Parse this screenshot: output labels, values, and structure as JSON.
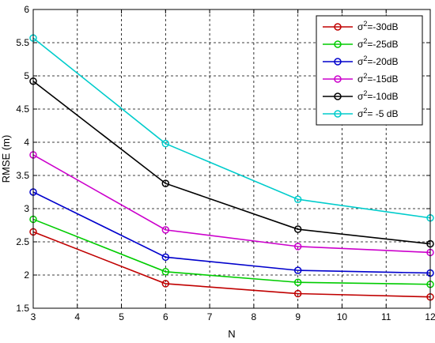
{
  "chart_data": {
    "type": "line",
    "xlabel": "N",
    "ylabel": "RMSE (m)",
    "xlim": [
      3,
      12
    ],
    "ylim": [
      1.5,
      6
    ],
    "xticks": [
      "3",
      "4",
      "5",
      "6",
      "7",
      "8",
      "9",
      "10",
      "11",
      "12"
    ],
    "yticks": [
      "1.5",
      "2",
      "2.5",
      "3",
      "3.5",
      "4",
      "4.5",
      "5",
      "5.5",
      "6"
    ],
    "grid": true,
    "legend_position": "top-right",
    "x": [
      3,
      6,
      9,
      12
    ],
    "series": [
      {
        "name": "σ2=-30dB",
        "sup": "2",
        "label_pre": "σ",
        "label_post": "=-30dB",
        "color": "#c00000",
        "values": [
          2.65,
          1.87,
          1.72,
          1.67
        ]
      },
      {
        "name": "σ2=-25dB",
        "sup": "2",
        "label_pre": "σ",
        "label_post": "=-25dB",
        "color": "#00cc00",
        "values": [
          2.84,
          2.05,
          1.89,
          1.86
        ]
      },
      {
        "name": "σ2=-20dB",
        "sup": "2",
        "label_pre": "σ",
        "label_post": "=-20dB",
        "color": "#0000cc",
        "values": [
          3.25,
          2.27,
          2.07,
          2.03
        ]
      },
      {
        "name": "σ2=-15dB",
        "sup": "2",
        "label_pre": "σ",
        "label_post": "=-15dB",
        "color": "#cc00cc",
        "values": [
          3.81,
          2.68,
          2.43,
          2.34
        ]
      },
      {
        "name": "σ2=-10dB",
        "sup": "2",
        "label_pre": "σ",
        "label_post": "=-10dB",
        "color": "#000000",
        "values": [
          4.92,
          3.38,
          2.69,
          2.47
        ]
      },
      {
        "name": "σ2= -5 dB",
        "sup": "2",
        "label_pre": "σ",
        "label_post": "= -5 dB",
        "color": "#00cccc",
        "values": [
          5.57,
          3.98,
          3.14,
          2.86
        ]
      }
    ]
  }
}
